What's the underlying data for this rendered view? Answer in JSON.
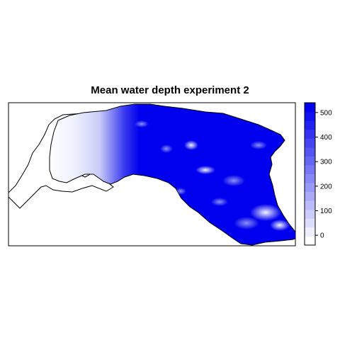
{
  "map": {
    "title": "Mean water depth experiment 2"
  },
  "legend": {
    "ticks": [
      0,
      100,
      200,
      300,
      400,
      500
    ],
    "value_range": [
      -40,
      540
    ],
    "low_color": "#ffffff",
    "high_color": "#0000ee",
    "steps": 16
  },
  "colors": {
    "outline": "#000000",
    "water_deep": "#0000ee",
    "water_shallow": "#ffffff"
  }
}
